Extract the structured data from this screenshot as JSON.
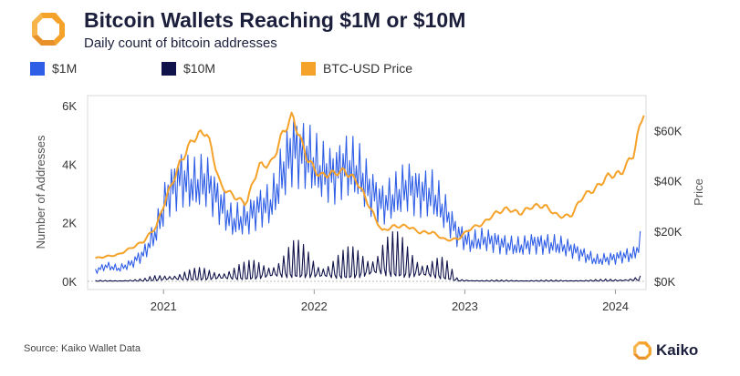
{
  "header": {
    "title": "Bitcoin Wallets Reaching $1M or $10M",
    "subtitle": "Daily count of bitcoin addresses"
  },
  "footer": {
    "source": "Source: Kaiko Wallet Data",
    "brand": "Kaiko"
  },
  "chart_data": {
    "type": "line",
    "x_type": "date",
    "xlim": [
      "2020-07-01",
      "2024-03-15"
    ],
    "x_ticks": [
      "2021",
      "2022",
      "2023",
      "2024"
    ],
    "x_tick_dates": [
      "2021-01-01",
      "2022-01-01",
      "2023-01-01",
      "2024-01-01"
    ],
    "y_left": {
      "label": "Number of Addresses",
      "ylim": [
        0,
        6000
      ],
      "ticks": [
        0,
        2000,
        4000,
        6000
      ],
      "tick_labels": [
        "0K",
        "2K",
        "4K",
        "6K"
      ]
    },
    "y_right": {
      "label": "Price",
      "ylim": [
        0,
        70000
      ],
      "ticks": [
        0,
        20000,
        40000,
        60000
      ],
      "tick_labels": [
        "$0K",
        "$20K",
        "$40K",
        "$60K"
      ]
    },
    "legend_position": "top",
    "series": [
      {
        "name": "$1M",
        "color": "#2f5ee6",
        "axis": "left",
        "x": [
          "2020-07-20",
          "2020-08-15",
          "2020-09-15",
          "2020-10-15",
          "2020-11-15",
          "2020-12-15",
          "2021-01-10",
          "2021-02-10",
          "2021-03-15",
          "2021-04-15",
          "2021-05-15",
          "2021-06-15",
          "2021-07-20",
          "2021-08-20",
          "2021-09-20",
          "2021-10-20",
          "2021-11-10",
          "2021-12-15",
          "2022-01-15",
          "2022-02-15",
          "2022-03-15",
          "2022-04-15",
          "2022-05-15",
          "2022-06-15",
          "2022-07-15",
          "2022-08-15",
          "2022-09-15",
          "2022-10-15",
          "2022-11-15",
          "2022-12-15",
          "2023-01-15",
          "2023-02-15",
          "2023-03-15",
          "2023-04-15",
          "2023-05-15",
          "2023-06-15",
          "2023-07-15",
          "2023-08-15",
          "2023-09-15",
          "2023-10-15",
          "2023-11-15",
          "2023-12-15",
          "2024-01-15",
          "2024-02-15",
          "2024-03-01"
        ],
        "values": [
          350,
          520,
          420,
          600,
          950,
          1700,
          2900,
          3500,
          3200,
          3400,
          2700,
          2000,
          2100,
          2500,
          2600,
          3800,
          4500,
          4200,
          3700,
          3600,
          3900,
          3700,
          3100,
          2600,
          2800,
          3200,
          3000,
          2900,
          2300,
          1600,
          1300,
          1400,
          1350,
          1200,
          1150,
          1300,
          1250,
          1200,
          1100,
          900,
          700,
          750,
          850,
          900,
          1300
        ]
      },
      {
        "name": "$10M",
        "color": "#10124a",
        "axis": "left",
        "x": [
          "2020-07-20",
          "2020-09-15",
          "2020-11-15",
          "2021-01-10",
          "2021-03-15",
          "2021-05-15",
          "2021-07-20",
          "2021-09-20",
          "2021-11-10",
          "2021-12-15",
          "2022-01-15",
          "2022-03-15",
          "2022-05-15",
          "2022-06-15",
          "2022-08-15",
          "2022-10-15",
          "2022-11-15",
          "2022-12-15",
          "2023-02-15",
          "2023-05-15",
          "2023-08-15",
          "2023-11-15",
          "2024-01-15",
          "2024-03-01"
        ],
        "values": [
          20,
          30,
          60,
          250,
          280,
          380,
          420,
          700,
          900,
          850,
          650,
          700,
          950,
          1300,
          900,
          750,
          500,
          60,
          30,
          30,
          30,
          40,
          70,
          150
        ]
      },
      {
        "name": "BTC-USD Price",
        "color": "#f5a22a",
        "axis": "right",
        "x": [
          "2020-07-20",
          "2020-09-15",
          "2020-11-15",
          "2020-12-15",
          "2021-01-10",
          "2021-02-10",
          "2021-03-15",
          "2021-04-15",
          "2021-05-20",
          "2021-06-20",
          "2021-07-20",
          "2021-08-20",
          "2021-09-20",
          "2021-10-20",
          "2021-11-10",
          "2021-12-15",
          "2022-01-15",
          "2022-02-15",
          "2022-03-15",
          "2022-04-15",
          "2022-05-15",
          "2022-06-15",
          "2022-07-15",
          "2022-08-15",
          "2022-09-15",
          "2022-10-15",
          "2022-11-15",
          "2022-12-15",
          "2023-01-15",
          "2023-02-15",
          "2023-03-15",
          "2023-04-15",
          "2023-05-15",
          "2023-06-15",
          "2023-07-15",
          "2023-08-15",
          "2023-09-15",
          "2023-10-15",
          "2023-11-15",
          "2023-12-15",
          "2024-01-15",
          "2024-02-15",
          "2024-03-10"
        ],
        "values": [
          9200,
          10700,
          16000,
          22000,
          34000,
          47000,
          57000,
          60000,
          38000,
          34000,
          31000,
          46000,
          47000,
          60000,
          66000,
          49000,
          42000,
          43000,
          44000,
          40000,
          30000,
          20000,
          22000,
          22000,
          19500,
          19500,
          16500,
          16800,
          21000,
          23000,
          27000,
          29000,
          27000,
          30000,
          30000,
          26000,
          26000,
          34000,
          37000,
          42000,
          43000,
          51000,
          68000
        ]
      }
    ]
  }
}
